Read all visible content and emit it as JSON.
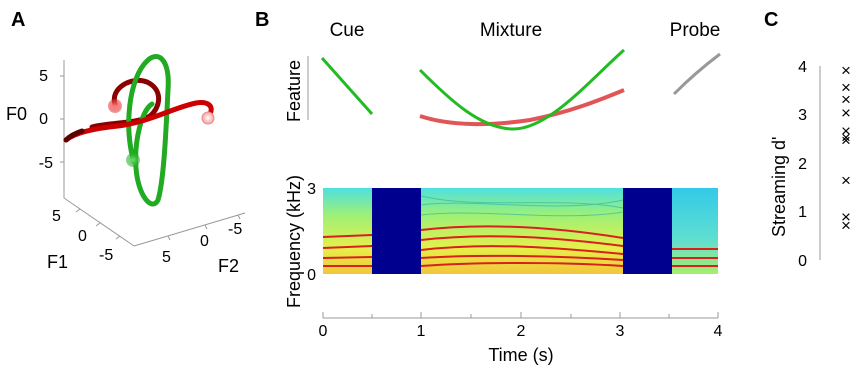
{
  "panels": {
    "a": "A",
    "b": "B",
    "c": "C"
  },
  "panel_a": {
    "z_label": "F0",
    "x_label": "F1",
    "y_label": "F2",
    "z_ticks": [
      "5",
      "0",
      "-5"
    ],
    "x_ticks": [
      "5",
      "0",
      "-5"
    ],
    "y_ticks": [
      "5",
      "0",
      "-5"
    ],
    "colors": {
      "red": "#cc0000",
      "green": "#22aa22"
    }
  },
  "panel_b": {
    "segment_titles": [
      "Cue",
      "Mixture",
      "Probe"
    ],
    "feature_label": "Feature",
    "frequency_label": "Frequency (kHz)",
    "freq_ticks": [
      "3",
      "0"
    ],
    "time_label": "Time (s)",
    "time_ticks": [
      "0",
      "1",
      "2",
      "3",
      "4"
    ]
  },
  "chart_data": {
    "type": "scatter",
    "ylabel": "Streaming d'",
    "ylim": [
      0,
      4
    ],
    "y_ticks": [
      "4",
      "3",
      "2",
      "1",
      "0"
    ],
    "marker": "×",
    "values": [
      3.9,
      3.55,
      3.3,
      3.02,
      2.65,
      2.52,
      2.45,
      1.63,
      0.88,
      0.7
    ]
  }
}
